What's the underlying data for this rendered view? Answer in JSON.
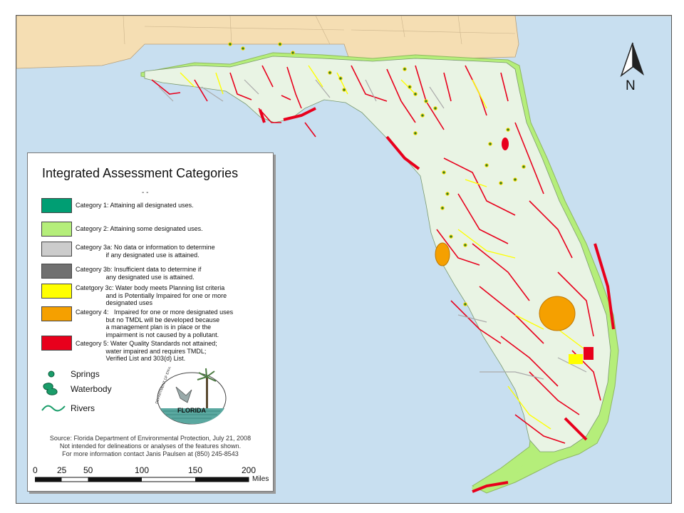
{
  "map": {
    "title": "",
    "colors": {
      "water": "#c8dff0",
      "land_outside": "#f5deb3",
      "florida": "#e9f4e4",
      "category1": "#009e73",
      "category2": "#b5ee7a",
      "category3a": "#cccccc",
      "category3b": "#707070",
      "category3c": "#ffff00",
      "category4": "#f5a000",
      "category5": "#e8001c"
    }
  },
  "legend": {
    "title": "Integrated Assessment Categories",
    "dashes": "-               -",
    "categories": [
      {
        "text": "Category 1: Attaining all designated uses.",
        "color": "#009e73"
      },
      {
        "text": "Category 2: Attaining some designated uses.",
        "color": "#b5ee7a"
      },
      {
        "text": "Category 3a: No data or information to determine\n                 if any designated use is attained.",
        "color": "#cccccc"
      },
      {
        "text": "Category 3b: Insufficient data to determine if\n                 any designated use is attained.",
        "color": "#707070"
      },
      {
        "text": "Catetgory 3c: Water body meets Planning list criteria\n                 and is Potentially Impaired for one or more\n                 designated uses",
        "color": "#ffff00"
      },
      {
        "text": "Category 4:   Impaired for one or more designated uses\n                 but no TMDL will be developed because\n                 a management plan is in place or the\n                 impairment is not caused by a pollutant.",
        "color": "#f5a000"
      },
      {
        "text": "Category 5: Water Quality Standards not attained;\n                 water impaired and requires TMDL;\n                 Verified List and 303(d) List.",
        "color": "#e8001c"
      }
    ],
    "symbols": {
      "springs": "Springs",
      "waterbody": "Waterbody",
      "rivers": "Rivers"
    },
    "logo_text": "FLORIDA",
    "logo_ring": "DEPARTMENT OF ENVIRONMENTAL PROTECTION",
    "source": {
      "line1": "Source: Florida Department of Environmental Protection, July 21, 2008",
      "line2": "Not intended for delineations or analyses of the features shown.",
      "line3": "For more information contact Janis Paulsen at (850) 245-8543"
    }
  },
  "north_arrow": {
    "label": "N",
    "icon": "north-arrow-icon"
  },
  "scale": {
    "ticks": [
      "0",
      "25",
      "50",
      "100",
      "150",
      "200"
    ],
    "unit": "Miles"
  }
}
